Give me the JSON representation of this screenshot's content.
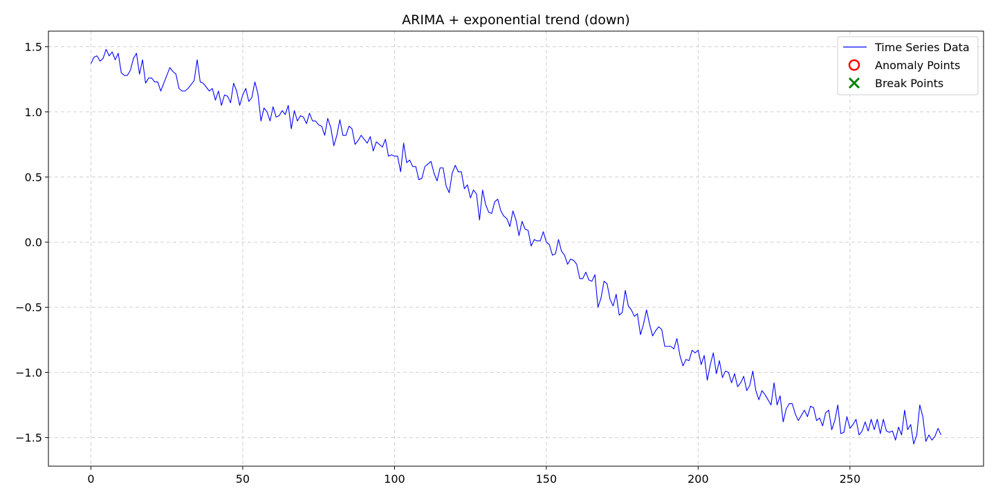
{
  "chart_data": {
    "type": "line",
    "title": "ARIMA + exponential trend (down)",
    "xlabel": "",
    "ylabel": "",
    "xlim": [
      -14,
      294
    ],
    "ylim": [
      -1.72,
      1.62
    ],
    "xticks": [
      0,
      50,
      100,
      150,
      200,
      250
    ],
    "xtick_labels": [
      "0",
      "50",
      "100",
      "150",
      "200",
      "250"
    ],
    "yticks": [
      1.5,
      1.0,
      0.5,
      0.0,
      -0.5,
      -1.0,
      -1.5
    ],
    "ytick_labels": [
      "1.5",
      "1.0",
      "0.5",
      "0.0",
      "−0.5",
      "−1.0",
      "−1.5"
    ],
    "grid": true,
    "legend_position": "top-right",
    "legend": [
      {
        "label": "Time Series Data",
        "marker": "line",
        "color": "#0000ff"
      },
      {
        "label": "Anomaly Points",
        "marker": "open-circle",
        "color": "#ff0000"
      },
      {
        "label": "Break Points",
        "marker": "x",
        "color": "#008000"
      }
    ],
    "series": [
      {
        "name": "Time Series Data",
        "color": "#0000ff",
        "x_start": 0,
        "x_step": 1,
        "values": [
          1.37,
          1.42,
          1.43,
          1.39,
          1.41,
          1.48,
          1.43,
          1.46,
          1.4,
          1.45,
          1.3,
          1.28,
          1.28,
          1.32,
          1.41,
          1.45,
          1.29,
          1.4,
          1.22,
          1.26,
          1.26,
          1.23,
          1.23,
          1.16,
          1.22,
          1.28,
          1.34,
          1.31,
          1.29,
          1.18,
          1.16,
          1.16,
          1.18,
          1.21,
          1.24,
          1.4,
          1.23,
          1.22,
          1.19,
          1.16,
          1.18,
          1.09,
          1.16,
          1.05,
          1.13,
          1.12,
          1.07,
          1.22,
          1.16,
          1.05,
          1.13,
          1.18,
          1.08,
          1.11,
          1.23,
          1.14,
          0.93,
          1.03,
          1.0,
          0.93,
          1.04,
          0.96,
          0.97,
          1.01,
          0.98,
          1.05,
          0.87,
          1.01,
          0.93,
          0.97,
          0.96,
          0.91,
          0.99,
          0.93,
          0.93,
          0.9,
          0.89,
          0.82,
          0.95,
          0.88,
          0.74,
          0.82,
          0.94,
          0.82,
          0.82,
          0.89,
          0.87,
          0.75,
          0.78,
          0.82,
          0.79,
          0.76,
          0.81,
          0.7,
          0.77,
          0.75,
          0.73,
          0.79,
          0.66,
          0.67,
          0.66,
          0.66,
          0.54,
          0.76,
          0.61,
          0.63,
          0.58,
          0.58,
          0.48,
          0.49,
          0.58,
          0.6,
          0.62,
          0.53,
          0.47,
          0.57,
          0.57,
          0.43,
          0.38,
          0.53,
          0.59,
          0.54,
          0.54,
          0.41,
          0.44,
          0.34,
          0.4,
          0.37,
          0.17,
          0.4,
          0.29,
          0.23,
          0.22,
          0.31,
          0.33,
          0.24,
          0.2,
          0.18,
          0.12,
          0.24,
          0.17,
          0.05,
          0.16,
          0.1,
          0.09,
          -0.03,
          0.02,
          0.01,
          0.01,
          0.08,
          0.0,
          -0.02,
          -0.1,
          -0.09,
          0.02,
          -0.07,
          -0.1,
          -0.17,
          -0.13,
          -0.14,
          -0.17,
          -0.28,
          -0.28,
          -0.23,
          -0.29,
          -0.3,
          -0.25,
          -0.5,
          -0.43,
          -0.3,
          -0.32,
          -0.44,
          -0.49,
          -0.4,
          -0.56,
          -0.54,
          -0.37,
          -0.49,
          -0.52,
          -0.57,
          -0.55,
          -0.71,
          -0.63,
          -0.52,
          -0.63,
          -0.72,
          -0.68,
          -0.65,
          -0.67,
          -0.8,
          -0.8,
          -0.8,
          -0.82,
          -0.74,
          -0.87,
          -0.95,
          -0.9,
          -0.91,
          -0.83,
          -0.85,
          -0.83,
          -0.94,
          -0.87,
          -1.06,
          -0.94,
          -0.85,
          -1.01,
          -0.91,
          -1.04,
          -0.99,
          -1.0,
          -1.08,
          -1.01,
          -1.11,
          -1.08,
          -1.03,
          -1.14,
          -1.1,
          -0.99,
          -1.14,
          -1.21,
          -1.14,
          -1.17,
          -1.21,
          -1.25,
          -1.08,
          -1.25,
          -1.18,
          -1.38,
          -1.28,
          -1.24,
          -1.24,
          -1.32,
          -1.37,
          -1.33,
          -1.29,
          -1.34,
          -1.26,
          -1.27,
          -1.37,
          -1.35,
          -1.41,
          -1.31,
          -1.29,
          -1.44,
          -1.37,
          -1.25,
          -1.47,
          -1.46,
          -1.34,
          -1.43,
          -1.4,
          -1.36,
          -1.48,
          -1.45,
          -1.38,
          -1.45,
          -1.36,
          -1.44,
          -1.36,
          -1.47,
          -1.36,
          -1.45,
          -1.46,
          -1.45,
          -1.52,
          -1.42,
          -1.48,
          -1.29,
          -1.44,
          -1.4,
          -1.55,
          -1.48,
          -1.25,
          -1.34,
          -1.53,
          -1.48,
          -1.52,
          -1.49,
          -1.43,
          -1.48
        ]
      }
    ],
    "anomaly_points": [],
    "break_points": []
  }
}
